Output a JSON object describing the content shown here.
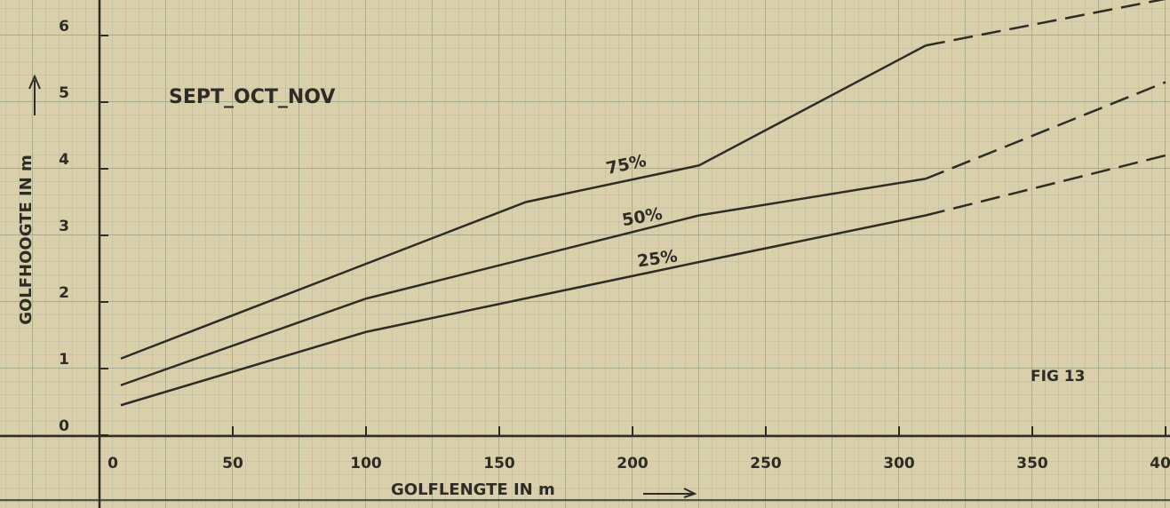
{
  "chart_data": {
    "type": "line",
    "annotations": [
      "SEPT_OCT_NOV",
      "FIG 13"
    ],
    "x_label": "GOLFLENGTE IN m",
    "y_label": "GOLFHOOGTE IN m",
    "xlim": [
      0,
      400
    ],
    "xticks": [
      0,
      50,
      100,
      150,
      200,
      250,
      300,
      350,
      400
    ],
    "ylim": [
      0,
      6.5
    ],
    "yticks": [
      0,
      1,
      2,
      3,
      4,
      5,
      6
    ],
    "dashed_after_x": 310,
    "color": "#2f2c26",
    "grid": true,
    "series": [
      {
        "name": "75%",
        "x": [
          8,
          160,
          225,
          310,
          400
        ],
        "values": [
          1.15,
          3.5,
          4.05,
          5.85,
          6.55
        ]
      },
      {
        "name": "50%",
        "x": [
          8,
          100,
          225,
          310,
          400
        ],
        "values": [
          0.75,
          2.05,
          3.3,
          3.85,
          5.3
        ]
      },
      {
        "name": "25%",
        "x": [
          8,
          100,
          225,
          310,
          400
        ],
        "values": [
          0.45,
          1.55,
          2.6,
          3.3,
          4.2
        ]
      }
    ]
  }
}
